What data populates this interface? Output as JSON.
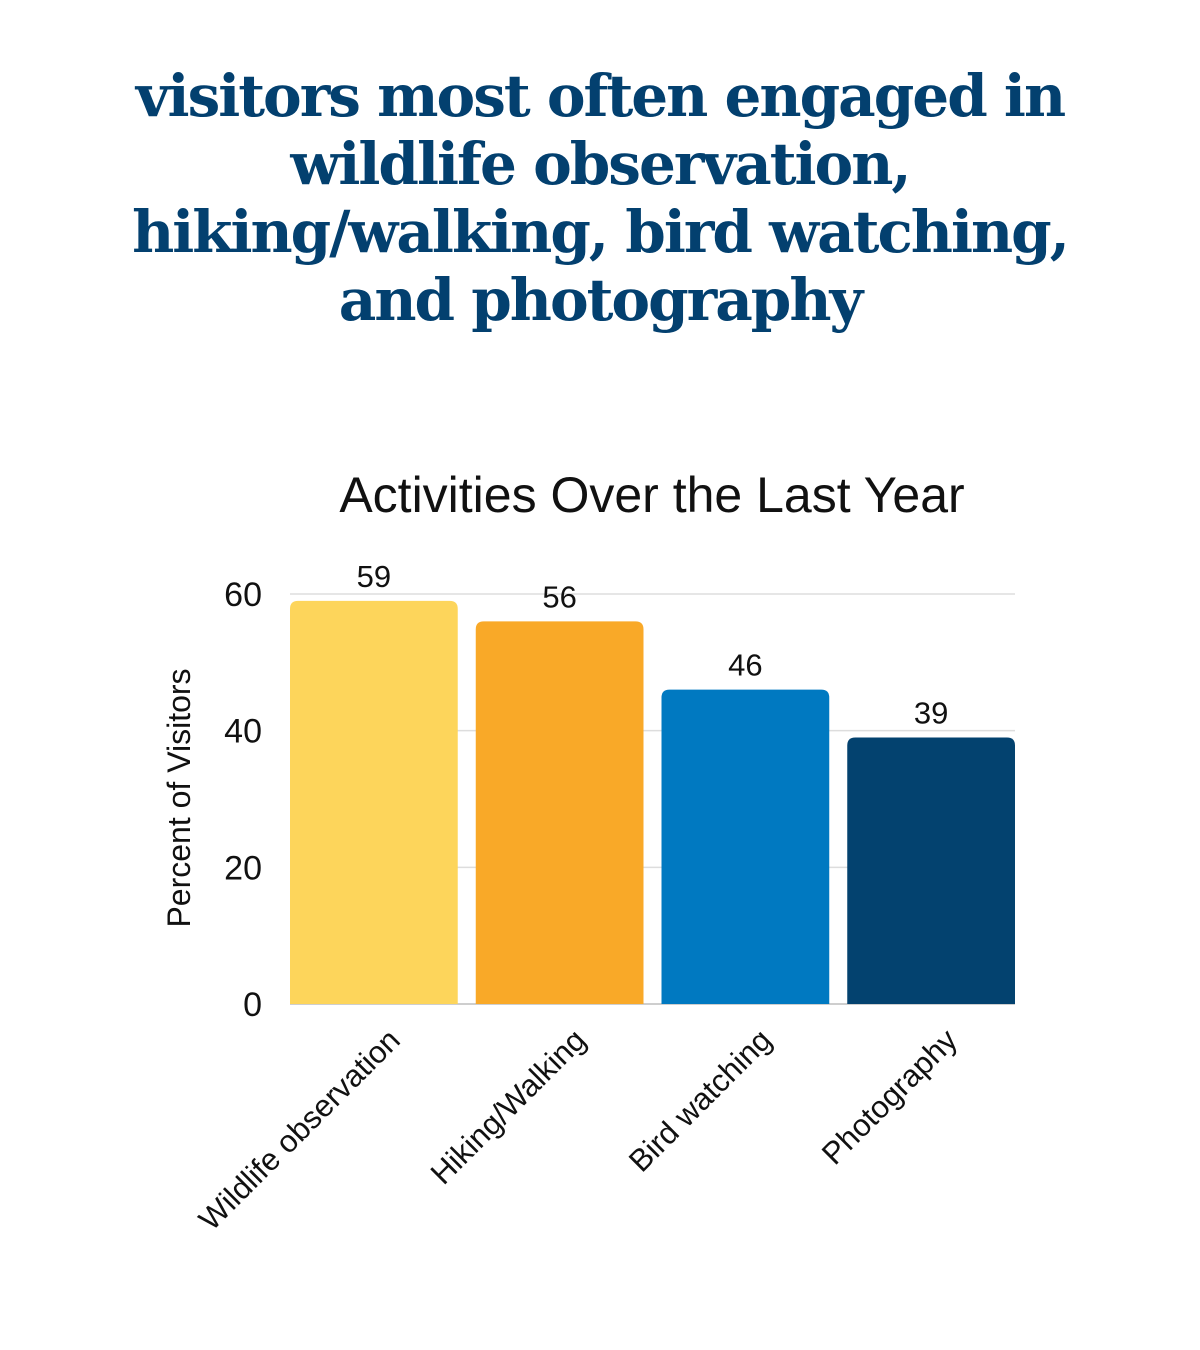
{
  "headline": "visitors most often engaged in wildlife observation, hiking/walking, bird watching, and photography",
  "chart_data": {
    "type": "bar",
    "title": "Activities Over the Last Year",
    "xlabel": "",
    "ylabel": "Percent of Visitors",
    "categories": [
      "Wildlife observation",
      "Hiking/Walking",
      "Bird watching",
      "Photography"
    ],
    "values": [
      59,
      56,
      46,
      39
    ],
    "colors": [
      "#fdd55b",
      "#f9a928",
      "#0079c1",
      "#03426f"
    ],
    "ylim": [
      0,
      60
    ],
    "yticks": [
      0,
      20,
      40,
      60
    ],
    "grid": true,
    "data_labels": true,
    "legend": "none"
  }
}
